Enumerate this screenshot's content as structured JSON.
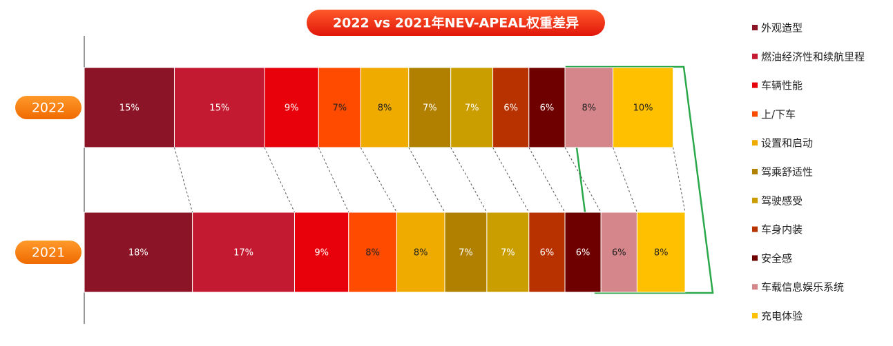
{
  "chart_data": {
    "type": "bar",
    "orientation": "horizontal",
    "stacked": true,
    "title": "2022 vs 2021年NEV-APEAL权重差异",
    "categories": [
      "2022",
      "2021"
    ],
    "xlim": [
      0,
      100
    ],
    "series": [
      {
        "name": "外观造型",
        "color": "#8b1426",
        "values": [
          15,
          18
        ],
        "value_labels": [
          "15%",
          "18%"
        ]
      },
      {
        "name": "燃油经济性和续航里程",
        "color": "#c41a31",
        "values": [
          15,
          17
        ],
        "value_labels": [
          "15%",
          "17%"
        ]
      },
      {
        "name": "车辆性能",
        "color": "#e8000b",
        "values": [
          9,
          9
        ],
        "value_labels": [
          "9%",
          "9%"
        ]
      },
      {
        "name": "上/下车",
        "color": "#ff4b00",
        "values": [
          7,
          8
        ],
        "value_labels": [
          "7%",
          "8%"
        ]
      },
      {
        "name": "设置和启动",
        "color": "#efab00",
        "values": [
          8,
          8
        ],
        "value_labels": [
          "8%",
          "8%"
        ]
      },
      {
        "name": "驾乘舒适性",
        "color": "#b28000",
        "values": [
          7,
          7
        ],
        "value_labels": [
          "7%",
          "7%"
        ]
      },
      {
        "name": "驾驶感受",
        "color": "#cb9e00",
        "values": [
          7,
          7
        ],
        "value_labels": [
          "7%",
          "7%"
        ]
      },
      {
        "name": "车身内装",
        "color": "#b83200",
        "values": [
          6,
          6
        ],
        "value_labels": [
          "6%",
          "6%"
        ]
      },
      {
        "name": "安全感",
        "color": "#6e0000",
        "values": [
          6,
          6
        ],
        "value_labels": [
          "6%",
          "6%"
        ]
      },
      {
        "name": "车载信息娱乐系统",
        "color": "#d4868a",
        "values": [
          8,
          6
        ],
        "value_labels": [
          "8%",
          "6%"
        ]
      },
      {
        "name": "充电体验",
        "color": "#ffc000",
        "values": [
          10,
          8
        ],
        "value_labels": [
          "10%",
          "8%"
        ]
      }
    ]
  }
}
